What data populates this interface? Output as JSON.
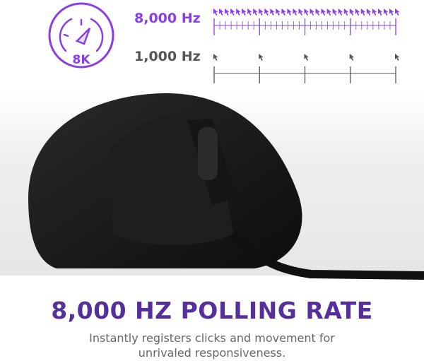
{
  "badge": {
    "label": "8K",
    "icon": "speedometer-icon"
  },
  "rows": [
    {
      "label": "8,000 Hz",
      "color": "#8a3ee8",
      "reports_per_interval": 8
    },
    {
      "label": "1,000 Hz",
      "color": "#555555",
      "reports_per_interval": 1
    }
  ],
  "headline": "8,000 HZ POLLING RATE",
  "subtext": "Instantly registers clicks and movement for unrivaled responsiveness.",
  "colors": {
    "accent": "#8a3ee8",
    "headline": "#55309a"
  }
}
